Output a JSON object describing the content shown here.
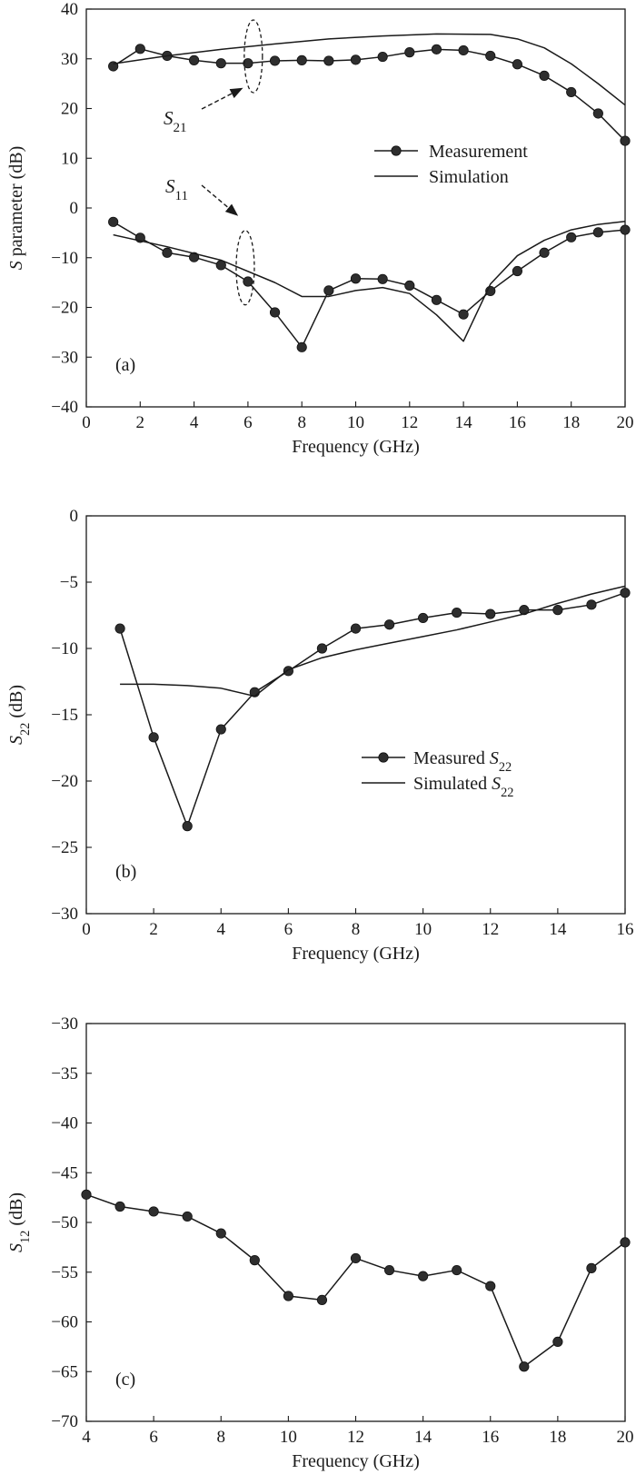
{
  "chart_data": [
    {
      "type": "line",
      "panel_label": "(a)",
      "xlabel": "Frequency (GHz)",
      "ylabel": {
        "italic": "S",
        "rest": " parameter (dB)"
      },
      "xlim": [
        0,
        20
      ],
      "ylim": [
        -40,
        40
      ],
      "xticks": [
        0,
        2,
        4,
        6,
        8,
        10,
        12,
        14,
        16,
        18,
        20
      ],
      "yticks": [
        -40,
        -30,
        -20,
        -10,
        0,
        10,
        20,
        30,
        40
      ],
      "grid": false,
      "legend_position": "right",
      "legend": [
        {
          "label": "Measurement",
          "style": "line-marker"
        },
        {
          "label": "Simulation",
          "style": "line"
        }
      ],
      "annotations": [
        {
          "italic": "S",
          "sub": "21"
        },
        {
          "italic": "S",
          "sub": "11"
        }
      ],
      "series": [
        {
          "name": "Measurement",
          "curve": "S21",
          "style": "line-marker",
          "x": [
            1,
            2,
            3,
            4,
            5,
            6,
            7,
            8,
            9,
            10,
            11,
            12,
            13,
            14,
            15,
            16,
            17,
            18,
            19,
            20
          ],
          "y": [
            28.5,
            32,
            30.6,
            29.7,
            29.1,
            29.1,
            29.6,
            29.7,
            29.6,
            29.8,
            30.4,
            31.3,
            31.9,
            31.7,
            30.6,
            28.9,
            26.6,
            23.3,
            19,
            13.5
          ]
        },
        {
          "name": "Simulation",
          "curve": "S21",
          "style": "line",
          "x": [
            1,
            3,
            5,
            7,
            9,
            11,
            13,
            15,
            16,
            17,
            18,
            19,
            20
          ],
          "y": [
            29,
            30.6,
            31.9,
            33,
            34,
            34.6,
            35,
            34.9,
            34,
            32.2,
            29,
            25,
            20.7
          ]
        },
        {
          "name": "Measurement",
          "curve": "S11",
          "style": "line-marker",
          "x": [
            1,
            2,
            3,
            4,
            5,
            6,
            7,
            8,
            9,
            10,
            11,
            12,
            13,
            14,
            15,
            16,
            17,
            18,
            19,
            20
          ],
          "y": [
            -2.8,
            -6,
            -9,
            -9.9,
            -11.5,
            -14.8,
            -21,
            -28,
            -16.6,
            -14.2,
            -14.3,
            -15.6,
            -18.5,
            -21.4,
            -16.7,
            -12.7,
            -9,
            -5.9,
            -4.9,
            -4.4
          ]
        },
        {
          "name": "Simulation",
          "curve": "S11",
          "style": "line",
          "x": [
            1,
            3,
            5,
            7,
            8,
            9,
            10,
            11,
            12,
            13,
            14,
            15,
            16,
            17,
            18,
            19,
            20
          ],
          "y": [
            -5.4,
            -7.8,
            -10.5,
            -15,
            -17.8,
            -17.8,
            -16.6,
            -16,
            -17.2,
            -21.5,
            -26.8,
            -15.3,
            -9.6,
            -6.5,
            -4.4,
            -3.3,
            -2.7
          ]
        }
      ]
    },
    {
      "type": "line",
      "panel_label": "(b)",
      "xlabel": "Frequency (GHz)",
      "ylabel": {
        "italic": "S",
        "sub": "22",
        "rest": " (dB)"
      },
      "xlim": [
        0,
        16
      ],
      "ylim": [
        -30,
        0
      ],
      "xticks": [
        0,
        2,
        4,
        6,
        8,
        10,
        12,
        14,
        16
      ],
      "yticks": [
        -30,
        -25,
        -20,
        -15,
        -10,
        -5,
        0
      ],
      "grid": false,
      "legend_position": "center-right",
      "legend": [
        {
          "prefix": "Measured ",
          "italic": "S",
          "sub": "22",
          "style": "line-marker"
        },
        {
          "prefix": "Simulated ",
          "italic": "S",
          "sub": "22",
          "style": "line"
        }
      ],
      "series": [
        {
          "name": "Measured S22",
          "style": "line-marker",
          "x": [
            1,
            2,
            3,
            4,
            5,
            6,
            7,
            8,
            9,
            10,
            11,
            12,
            13,
            14,
            15,
            16
          ],
          "y": [
            -8.5,
            -16.7,
            -23.4,
            -16.1,
            -13.3,
            -11.7,
            -10,
            -8.5,
            -8.2,
            -7.7,
            -7.3,
            -7.4,
            -7.1,
            -7.1,
            -6.7,
            -5.8
          ]
        },
        {
          "name": "Simulated S22",
          "style": "line",
          "x": [
            1,
            2,
            3,
            4,
            5,
            6,
            7,
            8,
            9,
            10,
            11,
            12,
            13,
            14,
            15,
            16
          ],
          "y": [
            -12.7,
            -12.7,
            -12.8,
            -13,
            -13.6,
            -11.6,
            -10.7,
            -10.1,
            -9.6,
            -9.1,
            -8.6,
            -8,
            -7.4,
            -6.6,
            -5.9,
            -5.3
          ]
        }
      ]
    },
    {
      "type": "line",
      "panel_label": "(c)",
      "xlabel": "Frequency (GHz)",
      "ylabel": {
        "italic": "S",
        "sub": "12",
        "rest": " (dB)"
      },
      "xlim": [
        4,
        20
      ],
      "ylim": [
        -70,
        -30
      ],
      "xticks": [
        4,
        6,
        8,
        10,
        12,
        14,
        16,
        18,
        20
      ],
      "yticks": [
        -70,
        -65,
        -60,
        -55,
        -50,
        -45,
        -40,
        -35,
        -30
      ],
      "grid": false,
      "series": [
        {
          "style": "line-marker",
          "x": [
            4,
            5,
            6,
            7,
            8,
            9,
            10,
            11,
            12,
            13,
            14,
            15,
            16,
            17,
            18,
            19,
            20
          ],
          "y": [
            -47.2,
            -48.4,
            -48.9,
            -49.4,
            -51.1,
            -53.8,
            -57.4,
            -57.8,
            -53.6,
            -54.8,
            -55.4,
            -54.8,
            -56.4,
            -64.5,
            -62,
            -54.6,
            -52
          ]
        }
      ]
    }
  ]
}
